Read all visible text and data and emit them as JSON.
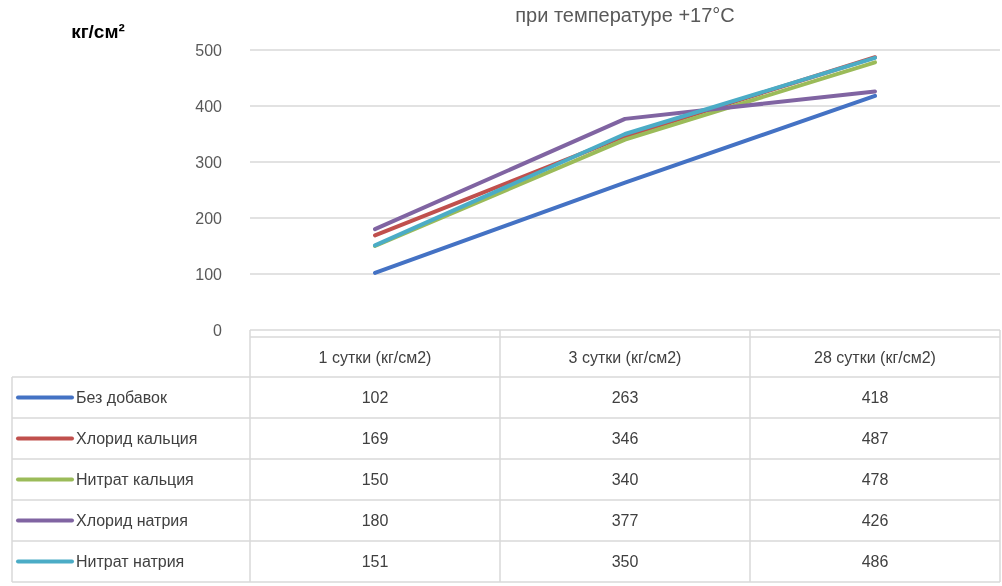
{
  "chart_data": {
    "type": "line",
    "title": "при температуре +17°С",
    "ylabel": "кг/см²",
    "categories": [
      "1 сутки (кг/см2)",
      "3 сутки (кг/см2)",
      "28 сутки (кг/см2)"
    ],
    "series": [
      {
        "name": "Без добавок",
        "color": "#4472c4",
        "values": [
          102,
          263,
          418
        ]
      },
      {
        "name": "Хлорид кальция",
        "color": "#c0504d",
        "values": [
          169,
          346,
          487
        ]
      },
      {
        "name": "Нитрат кальция",
        "color": "#9bbb59",
        "values": [
          150,
          340,
          478
        ]
      },
      {
        "name": "Хлорид натрия",
        "color": "#8064a2",
        "values": [
          180,
          377,
          426
        ]
      },
      {
        "name": "Нитрат натрия",
        "color": "#4bacc6",
        "values": [
          151,
          350,
          486
        ]
      }
    ],
    "ylim": [
      0,
      500
    ],
    "yticks": [
      0,
      100,
      200,
      300,
      400,
      500
    ],
    "grid": "y",
    "legend": "bottom",
    "data_labels": true,
    "marker": "none",
    "line_style": "solid"
  }
}
